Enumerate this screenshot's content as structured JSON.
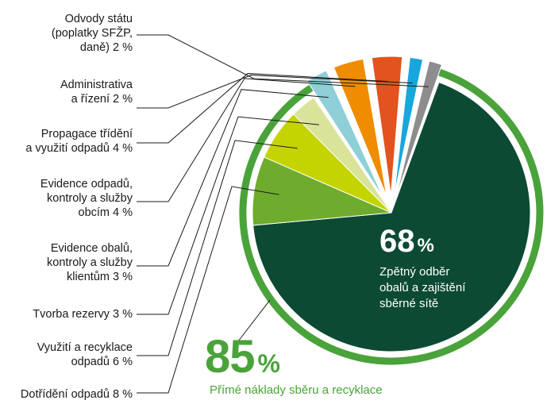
{
  "chart_data": {
    "type": "pie",
    "slices": [
      {
        "label": [
          "Zpětný odběr",
          "obalů a zajištění",
          "sběrné sítě"
        ],
        "value": 68,
        "value_text": "68",
        "unit": "%",
        "color": "#0c4a34",
        "exploded": false
      },
      {
        "label": [
          "Dotřídění odpadů 8 %"
        ],
        "value": 8,
        "color": "#6fac2d",
        "exploded": false
      },
      {
        "label": [
          "Využití a recyklace",
          "odpadů 6 %"
        ],
        "value": 6,
        "color": "#c4d400",
        "exploded": false
      },
      {
        "label": [
          "Tvorba rezervy 3 %"
        ],
        "value": 3,
        "color": "#d9e39a",
        "exploded": false
      },
      {
        "label": [
          "Evidence obalů,",
          "kontroly a služby",
          "klientům 3 %"
        ],
        "value": 3,
        "color": "#8ecfd8",
        "exploded": true
      },
      {
        "label": [
          "Evidence odpadů,",
          "kontroly a služby",
          "obcím 4 %"
        ],
        "value": 4,
        "color": "#ef8c00",
        "exploded": true
      },
      {
        "label": [
          "Propagace třídění",
          "a využití odpadů 4 %"
        ],
        "value": 4,
        "color": "#e2531f",
        "exploded": true
      },
      {
        "label": [
          "Administrativa",
          "a řízení 2 %"
        ],
        "value": 2,
        "color": "#18a7dc",
        "exploded": true
      },
      {
        "label": [
          "Odvody státu",
          "(poplatky SFŽP,",
          "daně) 2 %"
        ],
        "value": 2,
        "color": "#8d8d8f",
        "exploded": true
      }
    ],
    "group_ring": {
      "value_text": "85",
      "unit": "%",
      "caption": "Přímé náklady sběru a recyklace",
      "color": "#4aa33a"
    }
  },
  "labels_order": [
    [
      "Odvody státu",
      "(poplatky SFŽP,",
      "daně) 2 %"
    ],
    [
      "Administrativa",
      "a řízení 2 %"
    ],
    [
      "Propagace třídění",
      "a využití odpadů 4 %"
    ],
    [
      "Evidence odpadů,",
      "kontroly a služby",
      "obcím 4 %"
    ],
    [
      "Evidence obalů,",
      "kontroly a služby",
      "klientům 3 %"
    ],
    [
      "Tvorba rezervy 3 %"
    ],
    [
      "Využití a recyklace",
      "odpadů 6 %"
    ],
    [
      "Dotřídění odpadů 8 %"
    ]
  ],
  "colors": {
    "line": "#1a1a1a",
    "text": "#1a1a1a",
    "accent": "#4aa33a"
  }
}
